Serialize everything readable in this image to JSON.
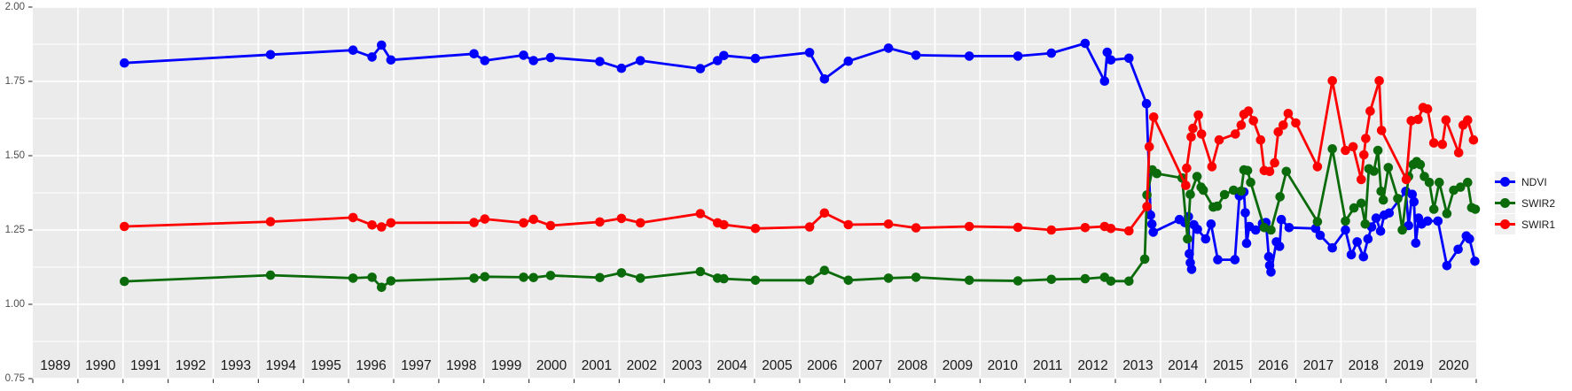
{
  "figure": {
    "background": "#FFFFFF",
    "panel_background": "#EBEBEB",
    "gridline_color": "#FFFFFF",
    "tick_color": "#333333",
    "axis_text_color": "#4D4D4D",
    "year_text_color": "#1A1A1A"
  },
  "y_axis": {
    "ticks": [
      {
        "label": "2.00",
        "value": 2.0
      },
      {
        "label": "1.75",
        "value": 1.75
      },
      {
        "label": "1.50",
        "value": 1.5
      },
      {
        "label": "1.25",
        "value": 1.25
      },
      {
        "label": "1.00",
        "value": 1.0
      },
      {
        "label": "0.75",
        "value": 0.75
      }
    ]
  },
  "x_axis": {
    "year_labels": [
      "1989",
      "1990",
      "1991",
      "1992",
      "1993",
      "1994",
      "1995",
      "1996",
      "1997",
      "1998",
      "1999",
      "2000",
      "2001",
      "2002",
      "2003",
      "2004",
      "2005",
      "2006",
      "2007",
      "2008",
      "2009",
      "2010",
      "2011",
      "2012",
      "2013",
      "2014",
      "2015",
      "2016",
      "2017",
      "2018",
      "2019",
      "2020"
    ]
  },
  "legend": {
    "items": [
      {
        "label": "NDVI",
        "color": "#0000FF"
      },
      {
        "label": "SWIR2",
        "color": "#0B6B0B"
      },
      {
        "label": "SWIR1",
        "color": "#FF0000"
      }
    ]
  },
  "chart_data": {
    "type": "line",
    "title": "",
    "xlabel": "",
    "ylabel": "",
    "xlim": [
      1989,
      2021
    ],
    "ylim": [
      0.75,
      2.0
    ],
    "x_breaks": [
      1989,
      1990,
      1991,
      1992,
      1993,
      1994,
      1995,
      1996,
      1997,
      1998,
      1999,
      2000,
      2001,
      2002,
      2003,
      2004,
      2005,
      2006,
      2007,
      2008,
      2009,
      2010,
      2011,
      2012,
      2013,
      2014,
      2015,
      2016,
      2017,
      2018,
      2019,
      2020,
      2021
    ],
    "y_breaks": [
      0.75,
      1.0,
      1.25,
      1.5,
      1.75,
      2.0
    ],
    "y_minor_breaks": [
      0.875,
      1.125,
      1.375,
      1.625,
      1.875
    ],
    "grid": true,
    "legend_position": "right",
    "series": [
      {
        "name": "NDVI",
        "color": "#0000FF",
        "points": [
          [
            1991.03,
            1.812
          ],
          [
            1994.27,
            1.84
          ],
          [
            1996.1,
            1.855
          ],
          [
            1996.52,
            1.832
          ],
          [
            1996.73,
            1.872
          ],
          [
            1996.94,
            1.822
          ],
          [
            1998.78,
            1.843
          ],
          [
            1999.02,
            1.82
          ],
          [
            1999.88,
            1.838
          ],
          [
            2000.1,
            1.82
          ],
          [
            2000.48,
            1.83
          ],
          [
            2001.57,
            1.817
          ],
          [
            2002.05,
            1.794
          ],
          [
            2002.47,
            1.82
          ],
          [
            2003.8,
            1.793
          ],
          [
            2004.18,
            1.82
          ],
          [
            2004.32,
            1.837
          ],
          [
            2005.02,
            1.827
          ],
          [
            2006.22,
            1.847
          ],
          [
            2006.55,
            1.758
          ],
          [
            2007.08,
            1.818
          ],
          [
            2007.97,
            1.862
          ],
          [
            2008.58,
            1.838
          ],
          [
            2009.76,
            1.835
          ],
          [
            2010.84,
            1.835
          ],
          [
            2011.58,
            1.845
          ],
          [
            2012.33,
            1.878
          ],
          [
            2012.76,
            1.751
          ],
          [
            2012.82,
            1.848
          ],
          [
            2012.9,
            1.822
          ],
          [
            2013.3,
            1.828
          ],
          [
            2013.69,
            1.675
          ],
          [
            2013.78,
            1.3
          ],
          [
            2013.81,
            1.27
          ],
          [
            2013.84,
            1.243
          ],
          [
            2014.42,
            1.285
          ],
          [
            2014.54,
            1.275
          ],
          [
            2014.62,
            1.295
          ],
          [
            2014.64,
            1.17
          ],
          [
            2014.66,
            1.14
          ],
          [
            2014.69,
            1.118
          ],
          [
            2014.74,
            1.268
          ],
          [
            2014.82,
            1.252
          ],
          [
            2015.0,
            1.22
          ],
          [
            2015.12,
            1.27
          ],
          [
            2015.27,
            1.15
          ],
          [
            2015.65,
            1.15
          ],
          [
            2015.75,
            1.365
          ],
          [
            2015.85,
            1.378
          ],
          [
            2015.88,
            1.308
          ],
          [
            2015.91,
            1.205
          ],
          [
            2015.97,
            1.262
          ],
          [
            2016.11,
            1.25
          ],
          [
            2016.26,
            1.272
          ],
          [
            2016.34,
            1.275
          ],
          [
            2016.4,
            1.16
          ],
          [
            2016.42,
            1.131
          ],
          [
            2016.45,
            1.109
          ],
          [
            2016.57,
            1.21
          ],
          [
            2016.64,
            1.195
          ],
          [
            2016.68,
            1.285
          ],
          [
            2016.85,
            1.258
          ],
          [
            2017.44,
            1.255
          ],
          [
            2017.54,
            1.232
          ],
          [
            2017.81,
            1.19
          ],
          [
            2018.1,
            1.25
          ],
          [
            2018.23,
            1.167
          ],
          [
            2018.36,
            1.21
          ],
          [
            2018.5,
            1.16
          ],
          [
            2018.6,
            1.22
          ],
          [
            2018.68,
            1.26
          ],
          [
            2018.78,
            1.29
          ],
          [
            2018.88,
            1.246
          ],
          [
            2018.96,
            1.3
          ],
          [
            2019.07,
            1.307
          ],
          [
            2019.44,
            1.38
          ],
          [
            2019.5,
            1.265
          ],
          [
            2019.58,
            1.37
          ],
          [
            2019.62,
            1.345
          ],
          [
            2019.66,
            1.206
          ],
          [
            2019.72,
            1.29
          ],
          [
            2019.79,
            1.27
          ],
          [
            2019.92,
            1.28
          ],
          [
            2020.15,
            1.28
          ],
          [
            2020.35,
            1.13
          ],
          [
            2020.6,
            1.185
          ],
          [
            2020.78,
            1.23
          ],
          [
            2020.85,
            1.22
          ],
          [
            2020.97,
            1.145
          ]
        ]
      },
      {
        "name": "SWIR2",
        "color": "#0B6B0B",
        "points": [
          [
            1991.03,
            1.077
          ],
          [
            1994.27,
            1.098
          ],
          [
            1996.1,
            1.088
          ],
          [
            1996.52,
            1.091
          ],
          [
            1996.73,
            1.057
          ],
          [
            1996.94,
            1.079
          ],
          [
            1998.78,
            1.088
          ],
          [
            1999.02,
            1.093
          ],
          [
            1999.88,
            1.091
          ],
          [
            2000.1,
            1.09
          ],
          [
            2000.48,
            1.097
          ],
          [
            2001.57,
            1.09
          ],
          [
            2002.05,
            1.106
          ],
          [
            2002.47,
            1.088
          ],
          [
            2003.8,
            1.11
          ],
          [
            2004.18,
            1.088
          ],
          [
            2004.32,
            1.086
          ],
          [
            2005.02,
            1.081
          ],
          [
            2006.22,
            1.081
          ],
          [
            2006.55,
            1.114
          ],
          [
            2007.08,
            1.081
          ],
          [
            2007.97,
            1.088
          ],
          [
            2008.58,
            1.091
          ],
          [
            2009.76,
            1.081
          ],
          [
            2010.84,
            1.079
          ],
          [
            2011.58,
            1.084
          ],
          [
            2012.33,
            1.086
          ],
          [
            2012.76,
            1.091
          ],
          [
            2012.9,
            1.078
          ],
          [
            2013.3,
            1.078
          ],
          [
            2013.65,
            1.152
          ],
          [
            2013.7,
            1.368
          ],
          [
            2013.82,
            1.452
          ],
          [
            2013.92,
            1.44
          ],
          [
            2014.48,
            1.425
          ],
          [
            2014.6,
            1.22
          ],
          [
            2014.66,
            1.37
          ],
          [
            2014.81,
            1.43
          ],
          [
            2014.9,
            1.394
          ],
          [
            2014.95,
            1.384
          ],
          [
            2015.17,
            1.327
          ],
          [
            2015.26,
            1.33
          ],
          [
            2015.42,
            1.369
          ],
          [
            2015.62,
            1.384
          ],
          [
            2015.79,
            1.381
          ],
          [
            2015.85,
            1.452
          ],
          [
            2015.93,
            1.45
          ],
          [
            2016.0,
            1.41
          ],
          [
            2016.3,
            1.258
          ],
          [
            2016.45,
            1.25
          ],
          [
            2016.65,
            1.362
          ],
          [
            2016.79,
            1.447
          ],
          [
            2017.48,
            1.278
          ],
          [
            2017.81,
            1.523
          ],
          [
            2018.1,
            1.28
          ],
          [
            2018.29,
            1.324
          ],
          [
            2018.45,
            1.34
          ],
          [
            2018.54,
            1.27
          ],
          [
            2018.62,
            1.456
          ],
          [
            2018.73,
            1.448
          ],
          [
            2018.82,
            1.518
          ],
          [
            2018.89,
            1.38
          ],
          [
            2018.94,
            1.351
          ],
          [
            2019.05,
            1.46
          ],
          [
            2019.26,
            1.356
          ],
          [
            2019.36,
            1.25
          ],
          [
            2019.5,
            1.43
          ],
          [
            2019.6,
            1.47
          ],
          [
            2019.68,
            1.48
          ],
          [
            2019.76,
            1.47
          ],
          [
            2019.85,
            1.43
          ],
          [
            2019.96,
            1.41
          ],
          [
            2020.06,
            1.32
          ],
          [
            2020.18,
            1.41
          ],
          [
            2020.35,
            1.305
          ],
          [
            2020.5,
            1.384
          ],
          [
            2020.65,
            1.394
          ],
          [
            2020.81,
            1.41
          ],
          [
            2020.9,
            1.325
          ],
          [
            2020.98,
            1.32
          ]
        ]
      },
      {
        "name": "SWIR1",
        "color": "#FF0000",
        "points": [
          [
            1991.03,
            1.262
          ],
          [
            1994.27,
            1.278
          ],
          [
            1996.1,
            1.292
          ],
          [
            1996.52,
            1.267
          ],
          [
            1996.73,
            1.26
          ],
          [
            1996.94,
            1.274
          ],
          [
            1998.78,
            1.275
          ],
          [
            1999.02,
            1.287
          ],
          [
            1999.88,
            1.274
          ],
          [
            2000.1,
            1.286
          ],
          [
            2000.48,
            1.265
          ],
          [
            2001.57,
            1.277
          ],
          [
            2002.05,
            1.289
          ],
          [
            2002.47,
            1.274
          ],
          [
            2003.8,
            1.305
          ],
          [
            2004.18,
            1.274
          ],
          [
            2004.32,
            1.268
          ],
          [
            2005.02,
            1.255
          ],
          [
            2006.22,
            1.26
          ],
          [
            2006.55,
            1.307
          ],
          [
            2007.08,
            1.268
          ],
          [
            2007.97,
            1.27
          ],
          [
            2008.58,
            1.257
          ],
          [
            2009.76,
            1.262
          ],
          [
            2010.84,
            1.259
          ],
          [
            2011.58,
            1.25
          ],
          [
            2012.33,
            1.258
          ],
          [
            2012.76,
            1.262
          ],
          [
            2012.9,
            1.255
          ],
          [
            2013.3,
            1.247
          ],
          [
            2013.7,
            1.329
          ],
          [
            2013.75,
            1.53
          ],
          [
            2013.85,
            1.63
          ],
          [
            2014.56,
            1.4
          ],
          [
            2014.58,
            1.458
          ],
          [
            2014.68,
            1.563
          ],
          [
            2014.72,
            1.592
          ],
          [
            2014.84,
            1.637
          ],
          [
            2014.91,
            1.573
          ],
          [
            2015.14,
            1.463
          ],
          [
            2015.3,
            1.553
          ],
          [
            2015.66,
            1.573
          ],
          [
            2015.79,
            1.603
          ],
          [
            2015.85,
            1.639
          ],
          [
            2015.95,
            1.65
          ],
          [
            2016.06,
            1.618
          ],
          [
            2016.22,
            1.553
          ],
          [
            2016.3,
            1.45
          ],
          [
            2016.42,
            1.447
          ],
          [
            2016.53,
            1.476
          ],
          [
            2016.61,
            1.58
          ],
          [
            2016.72,
            1.603
          ],
          [
            2016.83,
            1.642
          ],
          [
            2017.0,
            1.61
          ],
          [
            2017.48,
            1.463
          ],
          [
            2017.81,
            1.752
          ],
          [
            2018.1,
            1.518
          ],
          [
            2018.27,
            1.53
          ],
          [
            2018.45,
            1.42
          ],
          [
            2018.51,
            1.503
          ],
          [
            2018.55,
            1.558
          ],
          [
            2018.65,
            1.65
          ],
          [
            2018.85,
            1.752
          ],
          [
            2018.9,
            1.585
          ],
          [
            2019.45,
            1.42
          ],
          [
            2019.56,
            1.618
          ],
          [
            2019.71,
            1.622
          ],
          [
            2019.82,
            1.662
          ],
          [
            2019.92,
            1.657
          ],
          [
            2020.06,
            1.543
          ],
          [
            2020.25,
            1.538
          ],
          [
            2020.33,
            1.62
          ],
          [
            2020.61,
            1.51
          ],
          [
            2020.71,
            1.603
          ],
          [
            2020.81,
            1.62
          ],
          [
            2020.94,
            1.553
          ]
        ]
      }
    ]
  }
}
